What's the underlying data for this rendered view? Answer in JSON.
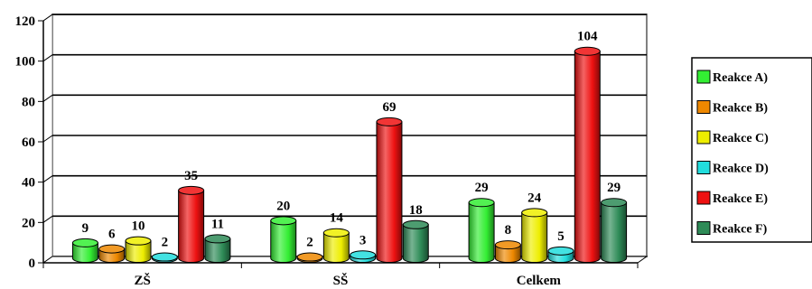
{
  "chart_data": {
    "type": "bar",
    "categories": [
      "ZŠ",
      "SŠ",
      "Celkem"
    ],
    "series": [
      {
        "name": "Reakce A)",
        "values": [
          9,
          20,
          29
        ],
        "color": "#33ee33"
      },
      {
        "name": "Reakce B)",
        "values": [
          6,
          2,
          8
        ],
        "color": "#ee8800"
      },
      {
        "name": "Reakce C)",
        "values": [
          10,
          14,
          24
        ],
        "color": "#eeee00"
      },
      {
        "name": "Reakce D)",
        "values": [
          2,
          3,
          5
        ],
        "color": "#22dddd"
      },
      {
        "name": "Reakce E)",
        "values": [
          35,
          69,
          104
        ],
        "color": "#ee1111"
      },
      {
        "name": "Reakce F)",
        "values": [
          11,
          18,
          29
        ],
        "color": "#2e8b57"
      }
    ],
    "ylim": [
      0,
      120
    ],
    "yticks": [
      "0",
      "20",
      "40",
      "60",
      "80",
      "100",
      "120"
    ],
    "grid": true,
    "legend_position": "right",
    "style": "3d-cylinder"
  }
}
